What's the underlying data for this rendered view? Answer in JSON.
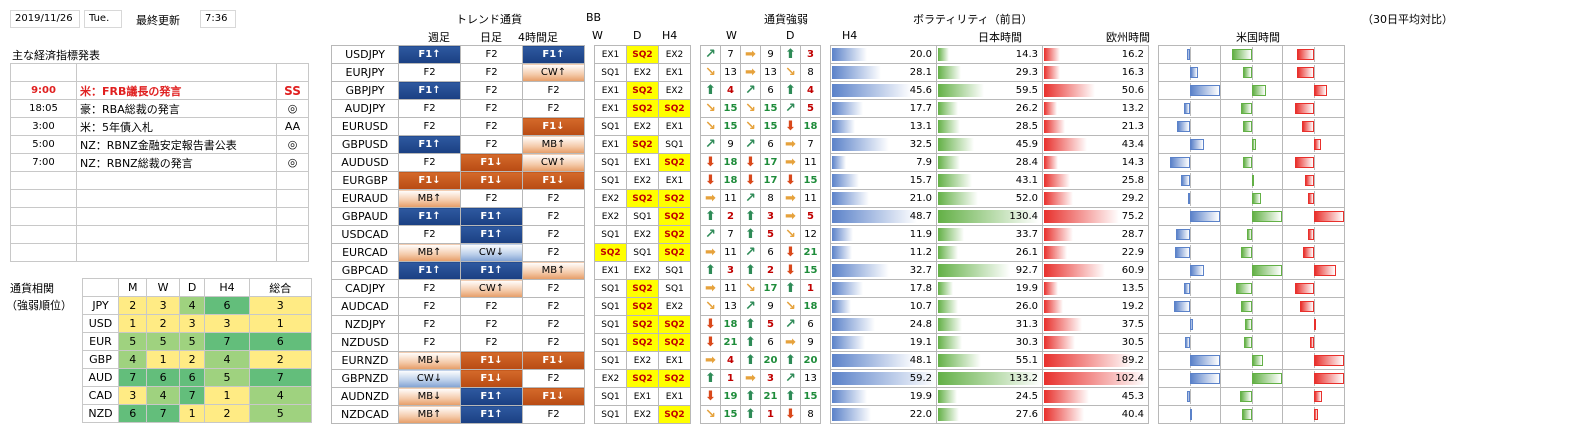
{
  "header": {
    "date": "2019/11/26",
    "weekday": "Tue.",
    "updated_label": "最終更新",
    "updated_time": "7:36"
  },
  "events": {
    "title": "主な経済指標発表",
    "rows": [
      {
        "time": "",
        "name": "",
        "rank": ""
      },
      {
        "time": "9:00",
        "name": "米：FRB議長の発言",
        "rank": "SS",
        "hl": true
      },
      {
        "time": "18:05",
        "name": "豪：RBA総裁の発言",
        "rank": "◎"
      },
      {
        "time": "3:00",
        "name": "米：5年債入札",
        "rank": "AA"
      },
      {
        "time": "5:00",
        "name": "NZ：RBNZ金融安定報告書公表",
        "rank": "◎"
      },
      {
        "time": "7:00",
        "name": "NZ：RBNZ総裁の発言",
        "rank": "◎"
      },
      {
        "time": "",
        "name": "",
        "rank": ""
      },
      {
        "time": "",
        "name": "",
        "rank": ""
      },
      {
        "time": "",
        "name": "",
        "rank": ""
      },
      {
        "time": "",
        "name": "",
        "rank": ""
      },
      {
        "time": "",
        "name": "",
        "rank": ""
      }
    ]
  },
  "ranking": {
    "title1": "通貨相関",
    "title2": "（強弱順位）",
    "headers": [
      "M",
      "W",
      "D",
      "H4",
      "総合"
    ],
    "rows": [
      {
        "cur": "JPY",
        "v": [
          "2",
          "3",
          "4",
          "6",
          "3"
        ]
      },
      {
        "cur": "USD",
        "v": [
          "1",
          "2",
          "3",
          "3",
          "1"
        ]
      },
      {
        "cur": "EUR",
        "v": [
          "5",
          "5",
          "5",
          "7",
          "6"
        ]
      },
      {
        "cur": "GBP",
        "v": [
          "4",
          "1",
          "2",
          "4",
          "2"
        ]
      },
      {
        "cur": "AUD",
        "v": [
          "7",
          "6",
          "6",
          "5",
          "7"
        ]
      },
      {
        "cur": "CAD",
        "v": [
          "3",
          "4",
          "7",
          "1",
          "4"
        ]
      },
      {
        "cur": "NZD",
        "v": [
          "6",
          "7",
          "1",
          "2",
          "5"
        ]
      }
    ]
  },
  "headers": {
    "trend": "トレンド通貨",
    "trend_cols": [
      "週足",
      "日足",
      "4時間足"
    ],
    "bb": "BB",
    "bb_cols": [
      "W",
      "D",
      "H4"
    ],
    "strength": "通貨強弱",
    "strength_cols": [
      "W",
      "D",
      "H4"
    ],
    "vol": "ボラティリティ（前日）",
    "vol_cols": [
      "日本時間",
      "欧州時間",
      "米国時間"
    ],
    "ratio": "（30日平均対比）"
  },
  "pairs": [
    {
      "p": "USDJPY",
      "t": [
        "F1↑",
        "F2",
        "F1↑"
      ],
      "b": [
        "EX1",
        "SQ2",
        "EX2"
      ],
      "s": [
        "↗",
        "7",
        "➡",
        "9",
        "⬆",
        "3"
      ],
      "v": [
        "20.0",
        "14.3",
        "16.2"
      ]
    },
    {
      "p": "EURJPY",
      "t": [
        "F2",
        "F2",
        "CW↑"
      ],
      "b": [
        "SQ1",
        "EX2",
        "EX1"
      ],
      "s": [
        "↘",
        "13",
        "➡",
        "13",
        "↘",
        "8"
      ],
      "v": [
        "28.1",
        "29.3",
        "16.3"
      ]
    },
    {
      "p": "GBPJPY",
      "t": [
        "F1↑",
        "F2",
        "F2"
      ],
      "b": [
        "EX1",
        "SQ2",
        "EX2"
      ],
      "s": [
        "⬆",
        "4",
        "↗",
        "6",
        "⬆",
        "4"
      ],
      "v": [
        "45.6",
        "59.5",
        "50.6"
      ]
    },
    {
      "p": "AUDJPY",
      "t": [
        "F2",
        "F2",
        "F2"
      ],
      "b": [
        "EX1",
        "SQ2",
        "SQ2"
      ],
      "s": [
        "↘",
        "15",
        "↘",
        "15",
        "↗",
        "5"
      ],
      "v": [
        "17.7",
        "26.2",
        "13.2"
      ]
    },
    {
      "p": "EURUSD",
      "t": [
        "F2",
        "F2",
        "F1↓"
      ],
      "b": [
        "SQ1",
        "EX2",
        "EX1"
      ],
      "s": [
        "↘",
        "15",
        "↘",
        "15",
        "⬇",
        "18"
      ],
      "v": [
        "13.1",
        "28.5",
        "21.3"
      ]
    },
    {
      "p": "GBPUSD",
      "t": [
        "F1↑",
        "F2",
        "MB↑"
      ],
      "b": [
        "EX1",
        "SQ2",
        "SQ1"
      ],
      "s": [
        "↗",
        "9",
        "↗",
        "6",
        "➡",
        "7"
      ],
      "v": [
        "32.5",
        "45.9",
        "43.4"
      ]
    },
    {
      "p": "AUDUSD",
      "t": [
        "F2",
        "F1↓",
        "CW↑"
      ],
      "b": [
        "SQ1",
        "EX1",
        "SQ2"
      ],
      "s": [
        "⬇",
        "18",
        "⬇",
        "17",
        "➡",
        "11"
      ],
      "v": [
        "7.9",
        "28.4",
        "14.3"
      ]
    },
    {
      "p": "EURGBP",
      "t": [
        "F1↓",
        "F1↓",
        "F1↓"
      ],
      "b": [
        "SQ1",
        "EX2",
        "EX1"
      ],
      "s": [
        "⬇",
        "18",
        "⬇",
        "17",
        "⬇",
        "15"
      ],
      "v": [
        "15.7",
        "43.1",
        "25.8"
      ]
    },
    {
      "p": "EURAUD",
      "t": [
        "MB↑",
        "F2",
        "F2"
      ],
      "b": [
        "EX2",
        "SQ2",
        "SQ2"
      ],
      "s": [
        "➡",
        "11",
        "↗",
        "8",
        "➡",
        "11"
      ],
      "v": [
        "21.0",
        "52.0",
        "29.2"
      ]
    },
    {
      "p": "GBPAUD",
      "t": [
        "F1↑",
        "F1↑",
        "F2"
      ],
      "b": [
        "EX2",
        "SQ1",
        "SQ2"
      ],
      "s": [
        "⬆",
        "2",
        "⬆",
        "3",
        "➡",
        "5"
      ],
      "v": [
        "48.7",
        "130.4",
        "75.2"
      ]
    },
    {
      "p": "USDCAD",
      "t": [
        "F2",
        "F1↑",
        "F2"
      ],
      "b": [
        "SQ1",
        "EX2",
        "SQ2"
      ],
      "s": [
        "↗",
        "7",
        "⬆",
        "5",
        "↘",
        "12"
      ],
      "v": [
        "11.9",
        "33.7",
        "28.7"
      ]
    },
    {
      "p": "EURCAD",
      "t": [
        "MB↑",
        "CW↓",
        "F2"
      ],
      "b": [
        "SQ2",
        "SQ1",
        "SQ2"
      ],
      "s": [
        "➡",
        "11",
        "↗",
        "6",
        "⬇",
        "21"
      ],
      "v": [
        "11.2",
        "26.1",
        "22.9"
      ]
    },
    {
      "p": "GBPCAD",
      "t": [
        "F1↑",
        "F1↑",
        "MB↑"
      ],
      "b": [
        "EX1",
        "EX2",
        "SQ1"
      ],
      "s": [
        "⬆",
        "3",
        "⬆",
        "2",
        "⬇",
        "15"
      ],
      "v": [
        "32.7",
        "92.7",
        "60.9"
      ]
    },
    {
      "p": "CADJPY",
      "t": [
        "F2",
        "CW↑",
        "F2"
      ],
      "b": [
        "SQ1",
        "SQ2",
        "SQ1"
      ],
      "s": [
        "➡",
        "11",
        "↘",
        "17",
        "⬆",
        "1"
      ],
      "v": [
        "17.8",
        "19.9",
        "13.5"
      ]
    },
    {
      "p": "AUDCAD",
      "t": [
        "F2",
        "F2",
        "F2"
      ],
      "b": [
        "SQ1",
        "SQ2",
        "EX2"
      ],
      "s": [
        "↘",
        "13",
        "↗",
        "9",
        "↘",
        "18"
      ],
      "v": [
        "10.7",
        "26.0",
        "19.2"
      ]
    },
    {
      "p": "NZDJPY",
      "t": [
        "F2",
        "F2",
        "F2"
      ],
      "b": [
        "SQ1",
        "SQ2",
        "SQ2"
      ],
      "s": [
        "⬇",
        "18",
        "⬆",
        "5",
        "↗",
        "6"
      ],
      "v": [
        "24.8",
        "31.3",
        "37.5"
      ]
    },
    {
      "p": "NZDUSD",
      "t": [
        "F2",
        "F2",
        "F2"
      ],
      "b": [
        "SQ1",
        "SQ2",
        "SQ2"
      ],
      "s": [
        "⬇",
        "21",
        "⬆",
        "6",
        "➡",
        "9"
      ],
      "v": [
        "19.1",
        "30.3",
        "30.5"
      ]
    },
    {
      "p": "EURNZD",
      "t": [
        "MB↓",
        "F1↓",
        "F1↓"
      ],
      "b": [
        "SQ1",
        "EX2",
        "EX1"
      ],
      "s": [
        "➡",
        "4",
        "⬆",
        "20",
        "⬆",
        "20"
      ],
      "v": [
        "48.1",
        "55.1",
        "89.2"
      ]
    },
    {
      "p": "GBPNZD",
      "t": [
        "CW↓",
        "F1↓",
        "F2"
      ],
      "b": [
        "EX2",
        "SQ2",
        "SQ2"
      ],
      "s": [
        "⬆",
        "1",
        "➡",
        "3",
        "↗",
        "13"
      ],
      "v": [
        "59.2",
        "133.2",
        "102.4"
      ]
    },
    {
      "p": "AUDNZD",
      "t": [
        "MB↓",
        "F1↑",
        "F1↓"
      ],
      "b": [
        "SQ1",
        "EX1",
        "EX1"
      ],
      "s": [
        "⬇",
        "19",
        "⬆",
        "21",
        "⬆",
        "15"
      ],
      "v": [
        "19.9",
        "24.5",
        "45.3"
      ]
    },
    {
      "p": "NZDCAD",
      "t": [
        "MB↑",
        "F1↑",
        "F2"
      ],
      "b": [
        "SQ1",
        "EX2",
        "SQ2"
      ],
      "s": [
        "↘",
        "15",
        "⬆",
        "1",
        "⬇",
        "8"
      ],
      "v": [
        "22.0",
        "27.6",
        "40.4"
      ]
    }
  ],
  "colors": {
    "bar_jp": "#5b82c9",
    "bar_eu": "#63b046",
    "bar_us": "#e8302c",
    "sq2_bg": "#ffff00",
    "rank_green": "#63be7b",
    "rank_yellow": "#ffeb84"
  }
}
